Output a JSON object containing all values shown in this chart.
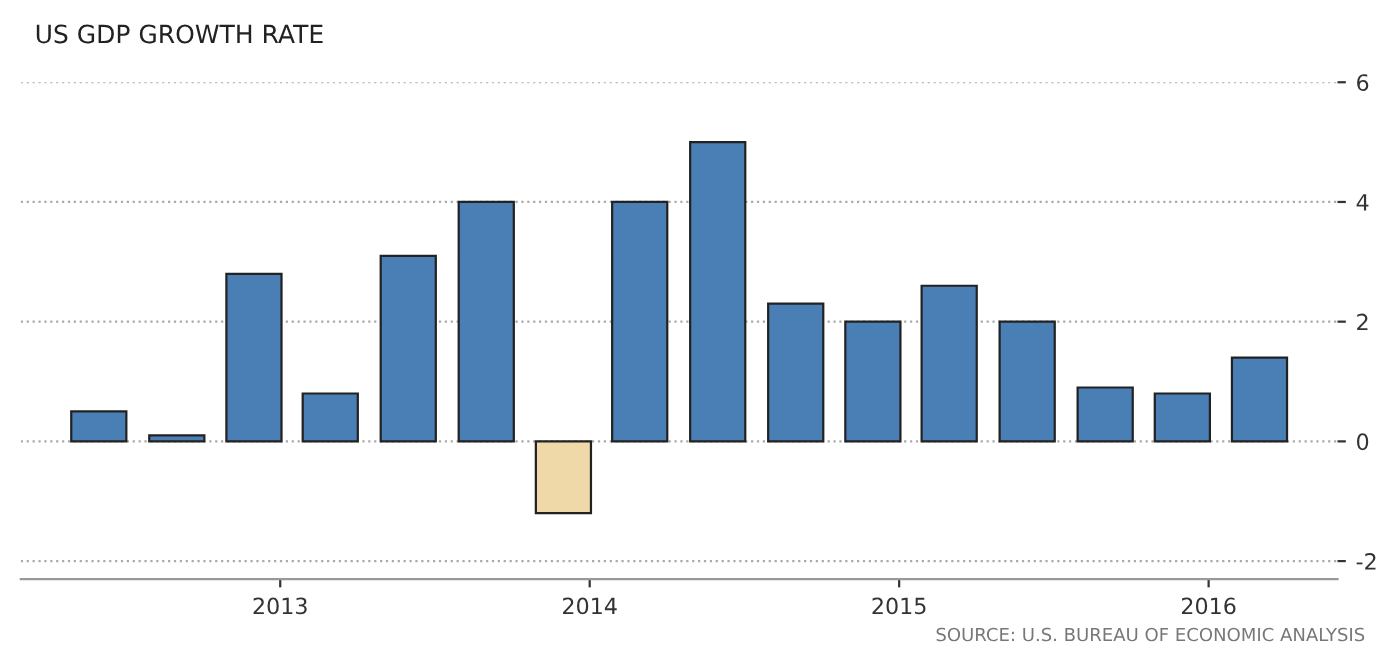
{
  "chart_data": {
    "type": "bar",
    "title": "US GDP GROWTH RATE",
    "x": [
      "2012-06",
      "2012-09",
      "2012-12",
      "2013-03",
      "2013-06",
      "2013-09",
      "2013-12",
      "2014-03",
      "2014-06",
      "2014-09",
      "2014-12",
      "2015-03",
      "2015-06",
      "2015-09",
      "2015-12",
      "2016-03"
    ],
    "values": [
      0.5,
      0.1,
      2.8,
      0.8,
      3.1,
      4.0,
      -1.2,
      4.0,
      5.0,
      2.3,
      2.0,
      2.6,
      2.0,
      0.9,
      0.8,
      1.4
    ],
    "colors": [
      "#4a7fb5",
      "#4a7fb5",
      "#4a7fb5",
      "#4a7fb5",
      "#4a7fb5",
      "#4a7fb5",
      "#f0d9a8",
      "#4a7fb5",
      "#4a7fb5",
      "#4a7fb5",
      "#4a7fb5",
      "#4a7fb5",
      "#4a7fb5",
      "#4a7fb5",
      "#4a7fb5",
      "#4a7fb5"
    ],
    "xlim": [
      "2012-03",
      "2016-06"
    ],
    "xticks": [
      {
        "value": "2013-01",
        "label": "2013"
      },
      {
        "value": "2014-01",
        "label": "2014"
      },
      {
        "value": "2015-01",
        "label": "2015"
      },
      {
        "value": "2016-01",
        "label": "2016"
      }
    ],
    "ylim": [
      -2.3,
      6
    ],
    "yticks": [
      -2,
      0,
      2,
      4,
      6
    ],
    "grid": "y",
    "annotations": [
      "SOURCE: U.S. BUREAU OF ECONOMIC ANALYSIS"
    ]
  }
}
